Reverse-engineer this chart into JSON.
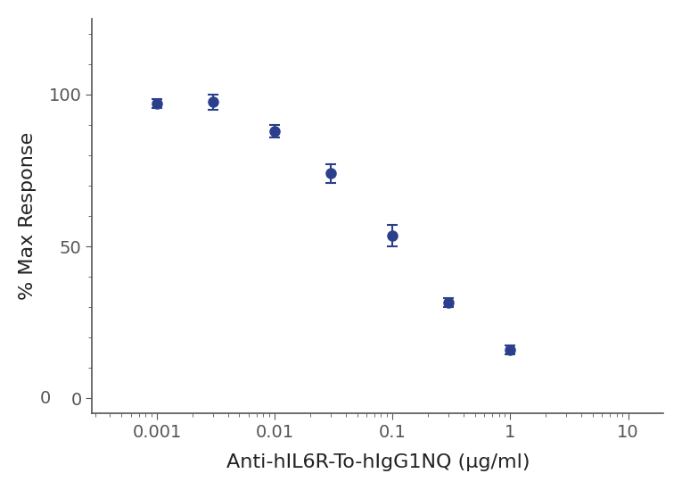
{
  "x": [
    0.001,
    0.003,
    0.01,
    0.03,
    0.1,
    0.3,
    1.0
  ],
  "y": [
    97.0,
    97.5,
    88.0,
    74.0,
    53.5,
    31.5,
    16.0
  ],
  "yerr": [
    1.5,
    2.5,
    2.0,
    3.0,
    3.5,
    1.5,
    1.5
  ],
  "color": "#2b3f8c",
  "marker": "o",
  "markersize": 8,
  "linewidth": 2.0,
  "xlabel": "Anti-hIL6R-To-hIgG1NQ (μg/ml)",
  "ylabel": "% Max Response",
  "xlim_log": [
    -3.3,
    1.3
  ],
  "ylim": [
    -5,
    125
  ],
  "yticks": [
    0,
    50,
    100
  ],
  "xtick_labels": [
    "0",
    "0.001",
    "0.01",
    "0.1",
    "1",
    "10"
  ],
  "xtick_positions": [
    0.0001,
    0.001,
    0.01,
    0.1,
    1,
    10
  ],
  "xlabel_fontsize": 16,
  "ylabel_fontsize": 16,
  "tick_fontsize": 14,
  "background_color": "#ffffff",
  "axis_color": "#555555",
  "capsize": 4
}
